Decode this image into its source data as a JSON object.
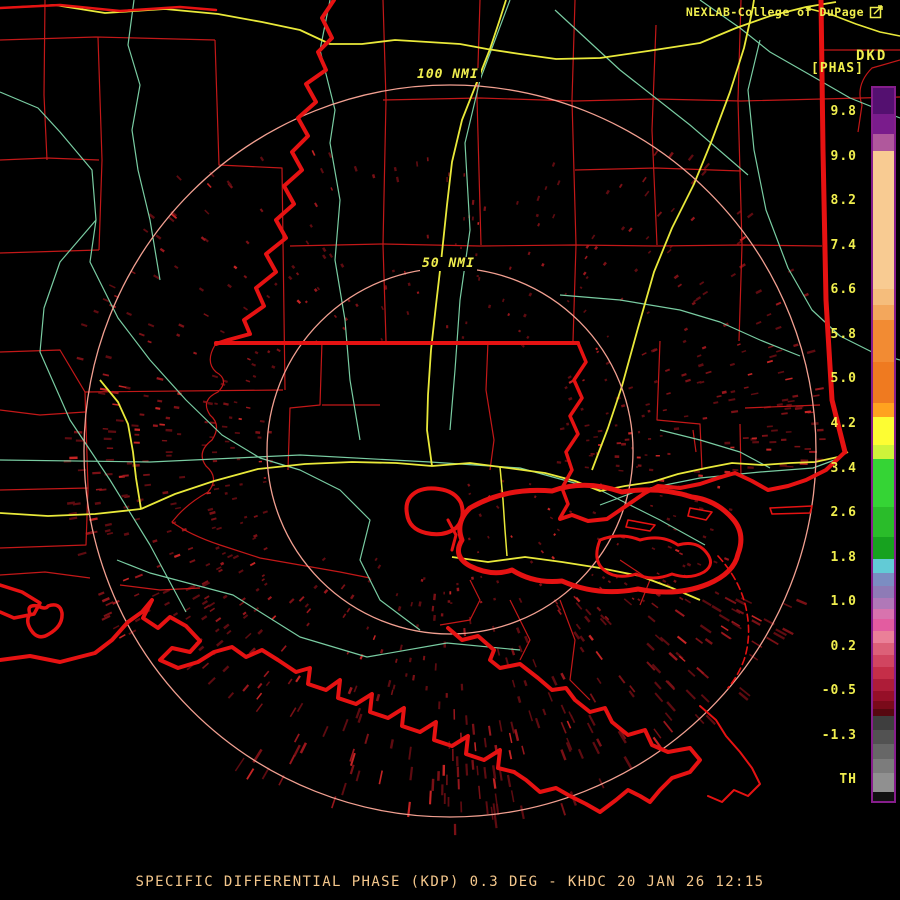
{
  "colors": {
    "background": "#000000",
    "label_yellow": "#F0EE4E",
    "caption_peach": "#F4C78C",
    "ring_salmon": "#F2A091",
    "county_red": "#C31818",
    "feature_red": "#E61212",
    "road_teal": "#79CCA2",
    "highway_yellow": "#E9E93A",
    "colorbar_border": "#861E8C",
    "noise_dark_red": "#5E0B10"
  },
  "header": {
    "brand": "NEXLAB-College of DuPage",
    "brand_icon": "resize-arrow-icon",
    "product_code": "DKD",
    "product_units": "[PHAS]"
  },
  "rings": [
    {
      "label": "100 NMI",
      "radius_nmi": 100
    },
    {
      "label": "50 NMI",
      "radius_nmi": 50
    }
  ],
  "colorbar": {
    "tick_labels": [
      "9.8",
      "9.0",
      "8.2",
      "7.4",
      "6.6",
      "5.8",
      "5.0",
      "4.2",
      "3.4",
      "2.6",
      "1.8",
      "1.0",
      "0.2",
      "-0.5",
      "-1.3",
      "TH"
    ],
    "segments": [
      {
        "c": "#541070",
        "to": 113
      },
      {
        "c": "#7A1C8C",
        "to": 133
      },
      {
        "c": "#B0589C",
        "to": 150
      },
      {
        "c": "#F8CB92",
        "to": 288
      },
      {
        "c": "#F5BD7C",
        "to": 304
      },
      {
        "c": "#F3A75C",
        "to": 319
      },
      {
        "c": "#F28B33",
        "to": 361
      },
      {
        "c": "#EF7A20",
        "to": 402
      },
      {
        "c": "#FFA21F",
        "to": 416
      },
      {
        "c": "#FDFD33",
        "to": 444
      },
      {
        "c": "#CFF33A",
        "to": 458
      },
      {
        "c": "#35D435",
        "to": 506
      },
      {
        "c": "#2ABC2A",
        "to": 536
      },
      {
        "c": "#17A21F",
        "to": 558
      },
      {
        "c": "#62CBD6",
        "to": 572
      },
      {
        "c": "#7B8DC2",
        "to": 585
      },
      {
        "c": "#8E7BB6",
        "to": 597
      },
      {
        "c": "#B078B8",
        "to": 608
      },
      {
        "c": "#D873AE",
        "to": 618
      },
      {
        "c": "#E35CA0",
        "to": 630
      },
      {
        "c": "#EA8098",
        "to": 642
      },
      {
        "c": "#DC6078",
        "to": 654
      },
      {
        "c": "#D14560",
        "to": 666
      },
      {
        "c": "#C52E48",
        "to": 678
      },
      {
        "c": "#AE1C38",
        "to": 690
      },
      {
        "c": "#960F28",
        "to": 700
      },
      {
        "c": "#7A0A1A",
        "to": 708
      },
      {
        "c": "#560810",
        "to": 715
      },
      {
        "c": "#3E3E3E",
        "to": 729
      },
      {
        "c": "#525252",
        "to": 743
      },
      {
        "c": "#676767",
        "to": 758
      },
      {
        "c": "#7C7C7C",
        "to": 772
      },
      {
        "c": "#909090",
        "to": 791
      },
      {
        "c": "#111111",
        "to": 803
      }
    ]
  },
  "footer": {
    "caption": "SPECIFIC DIFFERENTIAL PHASE (KDP) 0.3 DEG - KHDC 20 JAN 26 12:15"
  },
  "chart_data": {
    "type": "heatmap",
    "product": "Specific Differential Phase (KDP)",
    "product_code": "DKD",
    "elevation_deg": 0.3,
    "station": "KHDC",
    "timestamp": "20 JAN 26 12:15",
    "units": "PHAS (deg)",
    "scale_values": [
      9.8,
      9.0,
      8.2,
      7.4,
      6.6,
      5.8,
      5.0,
      4.2,
      3.4,
      2.6,
      1.8,
      1.0,
      0.2,
      -0.5,
      -1.3
    ],
    "scale_threshold_label": "TH",
    "range_rings_nmi": [
      100,
      50
    ],
    "legend_position": "right",
    "notes": "Sparse weak KDP speckle returns scattered around the radar, densest southwest and southeast of the site over coastal Louisiana"
  }
}
